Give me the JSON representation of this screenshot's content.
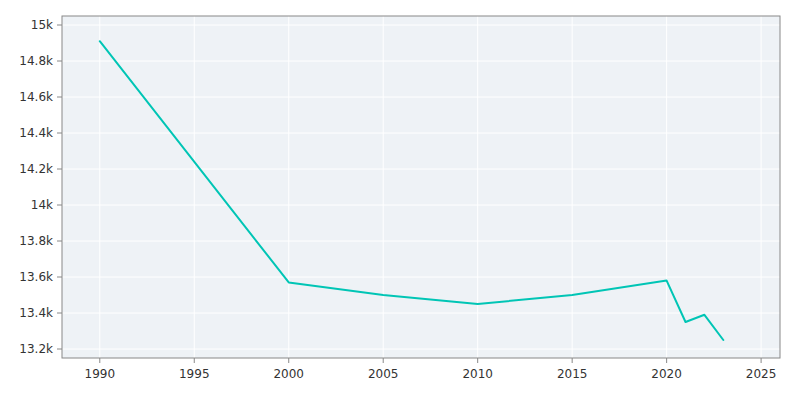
{
  "chart_data": {
    "type": "line",
    "x": [
      1990,
      2000,
      2005,
      2010,
      2015,
      2020,
      2021,
      2022,
      2023
    ],
    "values": [
      14910,
      13570,
      13500,
      13450,
      13500,
      13580,
      13350,
      13390,
      13250
    ],
    "color": "#00c5b5",
    "xlim": [
      1988,
      2026
    ],
    "ylim": [
      13150,
      15050
    ],
    "xticks": [
      1990,
      1995,
      2000,
      2005,
      2010,
      2015,
      2020,
      2025
    ],
    "yticks": [
      {
        "value": 13200,
        "label": "13.2k"
      },
      {
        "value": 13400,
        "label": "13.4k"
      },
      {
        "value": 13600,
        "label": "13.6k"
      },
      {
        "value": 13800,
        "label": "13.8k"
      },
      {
        "value": 14000,
        "label": "14k"
      },
      {
        "value": 14200,
        "label": "14.2k"
      },
      {
        "value": 14400,
        "label": "14.4k"
      },
      {
        "value": 14600,
        "label": "14.6k"
      },
      {
        "value": 14800,
        "label": "14.8k"
      },
      {
        "value": 15000,
        "label": "15k"
      }
    ],
    "grid": true
  }
}
